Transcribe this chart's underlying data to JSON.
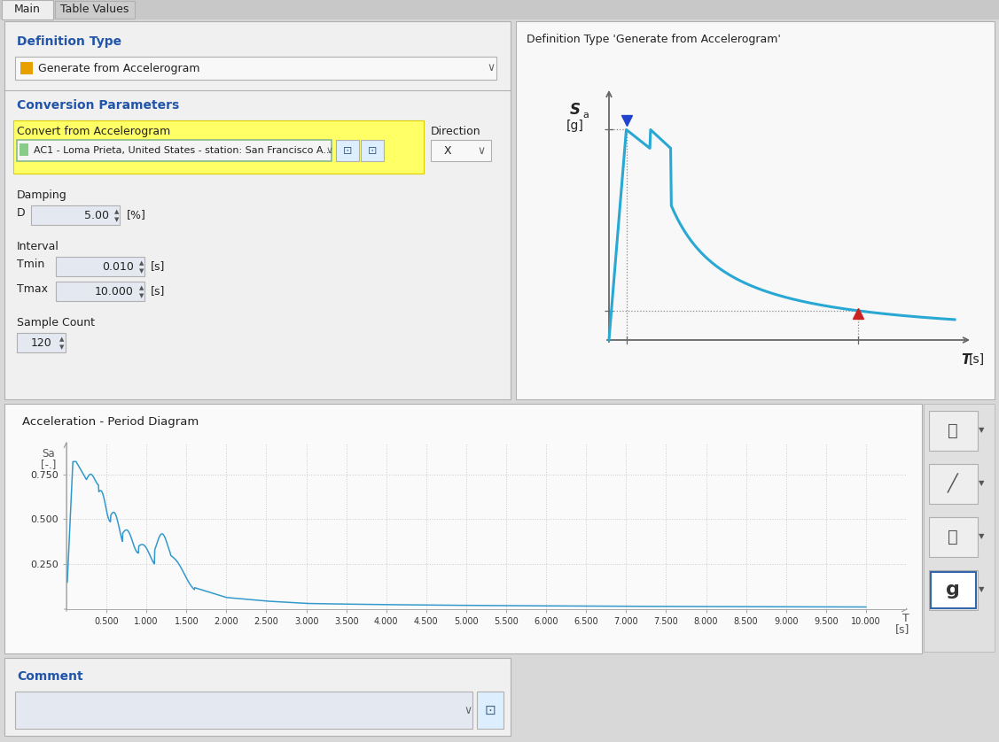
{
  "bg_color": "#d8d8d8",
  "left_panel_bg": "#f0f0f0",
  "right_panel_bg": "#f8f8f8",
  "chart_panel_bg": "#fafafa",
  "white": "#ffffff",
  "tab_active_bg": "#eeeeee",
  "tab_inactive_bg": "#cccccc",
  "tab_bar_bg": "#c8c8c8",
  "blue_header": "#2255aa",
  "text_dark": "#222222",
  "text_gray": "#555555",
  "highlight_yellow": "#ffff88",
  "input_bg": "#e4e8f0",
  "cyan_line": "#29a8d4",
  "grid_color": "#cccccc",
  "axis_color": "#888888",
  "border_color": "#b0b0b0",
  "tab1": "Main",
  "tab2": "Table Values",
  "def_type_label": "Definition Type",
  "def_type_value": "Generate from Accelerogram",
  "conv_params_label": "Conversion Parameters",
  "accel_label": "Convert from Accelerogram",
  "accel_value": "AC1 - Loma Prieta, United States - station: San Francisco A...",
  "direction_label": "Direction",
  "direction_value": "X",
  "damping_label": "Damping",
  "damping_D": "D",
  "damping_val": "5.00",
  "damping_unit": "[%]",
  "interval_label": "Interval",
  "tmin_label": "Tmin",
  "tmin_val": "0.010",
  "tmin_unit": "[s]",
  "tmax_label": "Tmax",
  "tmax_val": "10.000",
  "tmax_unit": "[s]",
  "sample_label": "Sample Count",
  "sample_val": "120",
  "right_panel_title": "Definition Type 'Generate from Accelerogram'",
  "chart_title": "Acceleration - Period Diagram",
  "chart_xticks": [
    0.5,
    1.0,
    1.5,
    2.0,
    2.5,
    3.0,
    3.5,
    4.0,
    4.5,
    5.0,
    5.5,
    6.0,
    6.5,
    7.0,
    7.5,
    8.0,
    8.5,
    9.0,
    9.5,
    10.0
  ],
  "chart_yticks": [
    0.25,
    0.5,
    0.75
  ],
  "chart_xlim": [
    0,
    10.5
  ],
  "chart_ylim": [
    0,
    0.92
  ],
  "comment_label": "Comment"
}
